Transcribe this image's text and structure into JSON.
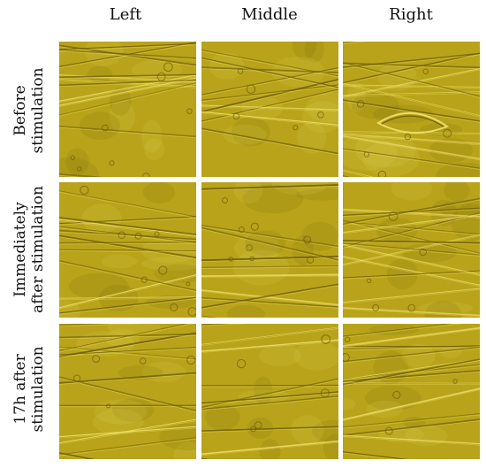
{
  "columns": [
    "Left",
    "Middle",
    "Right"
  ],
  "rows": [
    {
      "label_line1": "Before",
      "label_line2": "stimulation"
    },
    {
      "label_line1": "Immediately",
      "label_line2": "after stimulation"
    },
    {
      "label_line1": "17h after",
      "label_line2": "stimulation"
    }
  ],
  "panels": [
    {
      "id": "before-left",
      "desc": "microscopy-fibers-cells"
    },
    {
      "id": "before-middle",
      "desc": "microscopy-fibers-cells"
    },
    {
      "id": "before-right",
      "desc": "microscopy-spindle-cell"
    },
    {
      "id": "immediate-left",
      "desc": "microscopy-fibers"
    },
    {
      "id": "immediate-middle",
      "desc": "microscopy-fibers"
    },
    {
      "id": "immediate-right",
      "desc": "microscopy-fibers"
    },
    {
      "id": "17h-left",
      "desc": "microscopy-fibers"
    },
    {
      "id": "17h-middle",
      "desc": "microscopy-fibers"
    },
    {
      "id": "17h-right",
      "desc": "microscopy-fibers-cells"
    }
  ],
  "colors": {
    "background": "#b8a31a",
    "highlight": "#f2e26a",
    "shadow": "#6f5d05"
  }
}
